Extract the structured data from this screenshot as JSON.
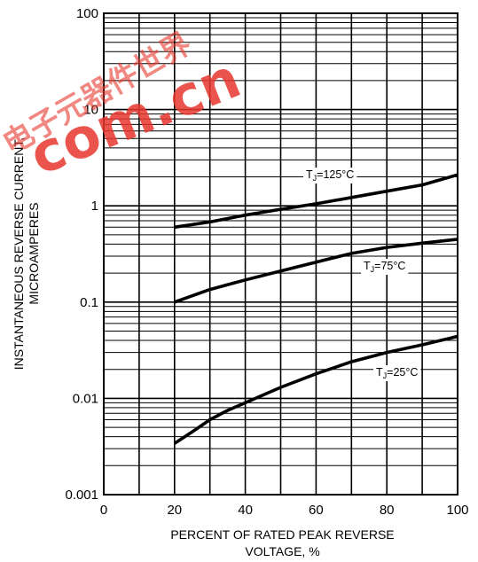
{
  "chart_data": {
    "type": "line",
    "x_scale": "linear",
    "y_scale": "log",
    "xlim": [
      0,
      100
    ],
    "ylim": [
      0.001,
      100
    ],
    "grid": true,
    "x_ticks": [
      "0",
      "20",
      "40",
      "60",
      "80",
      "100"
    ],
    "y_ticks": [
      "0.001",
      "0.01",
      "0.1",
      "1",
      "10",
      "100"
    ],
    "xlabel_lines": [
      "PERCENT OF RATED PEAK REVERSE",
      "VOLTAGE, %"
    ],
    "ylabel_lines": [
      "INSTANTANEOUS REVERSE CURRENT,",
      "MICROAMPERES"
    ],
    "series": [
      {
        "label_main": "T",
        "label_sub": "J",
        "label_rest": "=125°C",
        "x": [
          20,
          30,
          40,
          50,
          60,
          70,
          80,
          90,
          100
        ],
        "y": [
          0.6,
          0.68,
          0.8,
          0.92,
          1.05,
          1.22,
          1.42,
          1.65,
          2.1
        ]
      },
      {
        "label_main": "T",
        "label_sub": "J",
        "label_rest": "=75°C",
        "x": [
          20,
          30,
          40,
          50,
          60,
          70,
          80,
          90,
          100
        ],
        "y": [
          0.1,
          0.135,
          0.17,
          0.21,
          0.26,
          0.32,
          0.37,
          0.41,
          0.45
        ]
      },
      {
        "label_main": "T",
        "label_sub": "J",
        "label_rest": "=25°C",
        "x": [
          20,
          25,
          30,
          35,
          40,
          50,
          60,
          70,
          80,
          90,
          100
        ],
        "y": [
          0.0034,
          0.0045,
          0.006,
          0.0075,
          0.009,
          0.013,
          0.018,
          0.024,
          0.03,
          0.036,
          0.044
        ]
      }
    ]
  },
  "watermark": {
    "text_com": "com.cn",
    "text_cjk": "电子元器件世界",
    "color": "#e8372e"
  }
}
